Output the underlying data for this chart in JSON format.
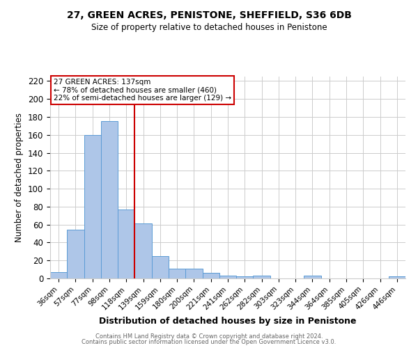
{
  "title": "27, GREEN ACRES, PENISTONE, SHEFFIELD, S36 6DB",
  "subtitle": "Size of property relative to detached houses in Penistone",
  "xlabel": "Distribution of detached houses by size in Penistone",
  "ylabel": "Number of detached properties",
  "bar_labels": [
    "36sqm",
    "57sqm",
    "77sqm",
    "98sqm",
    "118sqm",
    "139sqm",
    "159sqm",
    "180sqm",
    "200sqm",
    "221sqm",
    "241sqm",
    "262sqm",
    "282sqm",
    "303sqm",
    "323sqm",
    "344sqm",
    "364sqm",
    "385sqm",
    "405sqm",
    "426sqm",
    "446sqm"
  ],
  "bar_values": [
    7,
    54,
    160,
    175,
    77,
    61,
    25,
    11,
    11,
    6,
    3,
    2,
    3,
    0,
    0,
    3,
    0,
    0,
    0,
    0,
    2
  ],
  "bar_color": "#aec6e8",
  "bar_edge_color": "#5b9bd5",
  "vline_x_index": 5,
  "vline_color": "#cc0000",
  "ylim": [
    0,
    225
  ],
  "yticks": [
    0,
    20,
    40,
    60,
    80,
    100,
    120,
    140,
    160,
    180,
    200,
    220
  ],
  "annotation_title": "27 GREEN ACRES: 137sqm",
  "annotation_line1": "← 78% of detached houses are smaller (460)",
  "annotation_line2": "22% of semi-detached houses are larger (129) →",
  "annotation_box_color": "#ffffff",
  "annotation_box_edge_color": "#cc0000",
  "footer_line1": "Contains HM Land Registry data © Crown copyright and database right 2024.",
  "footer_line2": "Contains public sector information licensed under the Open Government Licence v3.0.",
  "background_color": "#ffffff",
  "grid_color": "#cccccc"
}
